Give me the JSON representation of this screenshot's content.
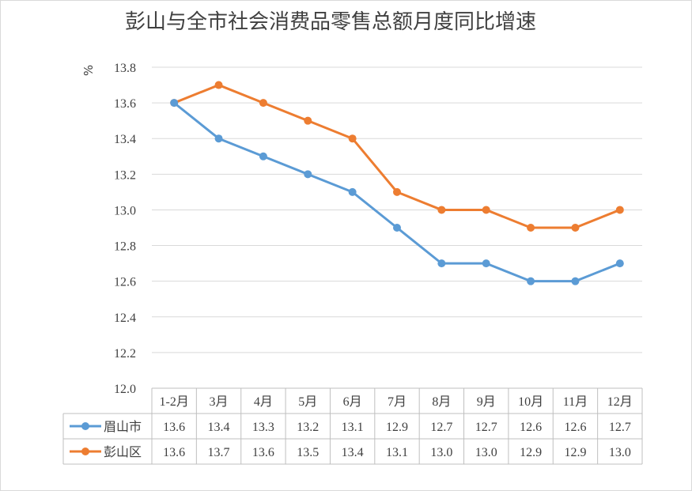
{
  "chart_data": {
    "type": "line",
    "title": "彭山与全市社会消费品零售总额月度同比增速",
    "ylabel": "%",
    "ylim": [
      12.0,
      13.8
    ],
    "yticks": [
      "13.8",
      "13.6",
      "13.4",
      "13.2",
      "13.0",
      "12.8",
      "12.6",
      "12.4",
      "12.2",
      "12.0"
    ],
    "grid": true,
    "legend": "data-table",
    "categories": [
      "1-2月",
      "3月",
      "4月",
      "5月",
      "6月",
      "7月",
      "8月",
      "9月",
      "10月",
      "11月",
      "12月"
    ],
    "series": [
      {
        "name": "眉山市",
        "color": "#5b9bd5",
        "values": [
          13.6,
          13.4,
          13.3,
          13.2,
          13.1,
          12.9,
          12.7,
          12.7,
          12.6,
          12.6,
          12.7
        ],
        "labels": [
          "13.6",
          "13.4",
          "13.3",
          "13.2",
          "13.1",
          "12.9",
          "12.7",
          "12.7",
          "12.6",
          "12.6",
          "12.7"
        ]
      },
      {
        "name": "彭山区",
        "color": "#ed7d31",
        "values": [
          13.6,
          13.7,
          13.6,
          13.5,
          13.4,
          13.1,
          13.0,
          13.0,
          12.9,
          12.9,
          13.0
        ],
        "labels": [
          "13.6",
          "13.7",
          "13.6",
          "13.5",
          "13.4",
          "13.1",
          "13.0",
          "13.0",
          "12.9",
          "12.9",
          "13.0"
        ]
      }
    ]
  }
}
